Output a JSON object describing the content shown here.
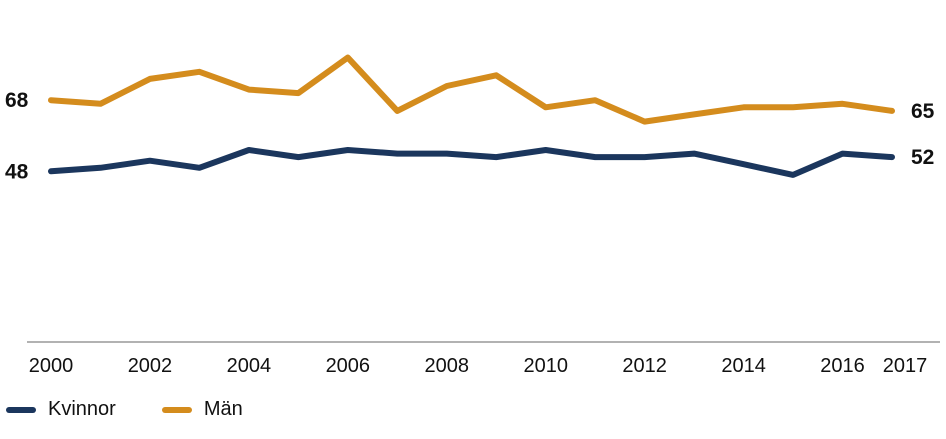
{
  "chart_data": {
    "type": "line",
    "x": [
      2000,
      2001,
      2002,
      2003,
      2004,
      2005,
      2006,
      2007,
      2008,
      2009,
      2010,
      2011,
      2012,
      2013,
      2014,
      2015,
      2016,
      2017
    ],
    "x_tick_labels": [
      "2000",
      "2002",
      "2004",
      "2006",
      "2008",
      "2010",
      "2012",
      "2014",
      "2016",
      "2017"
    ],
    "series": [
      {
        "name": "Kvinnor",
        "color": "#1b365d",
        "values": [
          48,
          49,
          51,
          49,
          54,
          52,
          54,
          53,
          53,
          52,
          54,
          52,
          52,
          53,
          50,
          47,
          53,
          52
        ],
        "start_label": "48",
        "end_label": "52"
      },
      {
        "name": "Män",
        "color": "#d48c1d",
        "values": [
          68,
          67,
          74,
          76,
          71,
          70,
          80,
          65,
          72,
          75,
          66,
          68,
          62,
          64,
          66,
          66,
          67,
          65
        ],
        "start_label": "68",
        "end_label": "65"
      }
    ],
    "ylim": [
      0,
      90
    ],
    "grid": false,
    "legend_position": "bottom-left"
  }
}
